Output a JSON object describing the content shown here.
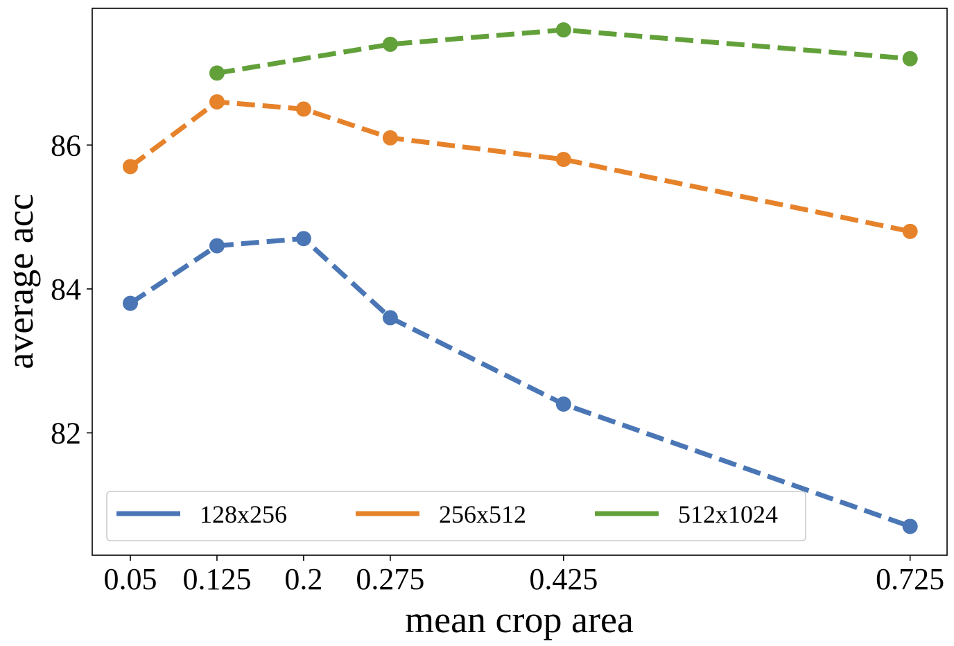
{
  "chart_data": {
    "type": "line",
    "title": "",
    "xlabel": "mean crop area",
    "ylabel": "average acc",
    "x": [
      0.05,
      0.125,
      0.2,
      0.275,
      0.425,
      0.725
    ],
    "x_tick_labels": [
      "0.05",
      "0.125",
      "0.2",
      "0.275",
      "0.425",
      "0.725"
    ],
    "y_ticks": [
      82,
      84,
      86
    ],
    "y_tick_labels": [
      "82",
      "84",
      "86"
    ],
    "xlim": [
      0.017,
      0.757
    ],
    "ylim": [
      80.3,
      87.9
    ],
    "grid": false,
    "legend_position": "lower-left",
    "series": [
      {
        "name": "128x256",
        "color": "#4a76b5",
        "line_style": "dashed",
        "marker": "circle",
        "points": [
          [
            0.05,
            83.8
          ],
          [
            0.125,
            84.6
          ],
          [
            0.2,
            84.7
          ],
          [
            0.275,
            83.6
          ],
          [
            0.425,
            82.4
          ],
          [
            0.725,
            80.7
          ]
        ]
      },
      {
        "name": "256x512",
        "color": "#e6822a",
        "line_style": "dashed",
        "marker": "circle",
        "points": [
          [
            0.05,
            85.7
          ],
          [
            0.125,
            86.6
          ],
          [
            0.2,
            86.5
          ],
          [
            0.275,
            86.1
          ],
          [
            0.425,
            85.8
          ],
          [
            0.725,
            84.8
          ]
        ]
      },
      {
        "name": "512x1024",
        "color": "#62a03a",
        "line_style": "dashed",
        "marker": "circle",
        "points": [
          [
            0.125,
            87.0
          ],
          [
            0.275,
            87.4
          ],
          [
            0.425,
            87.6
          ],
          [
            0.725,
            87.2
          ]
        ]
      }
    ]
  }
}
